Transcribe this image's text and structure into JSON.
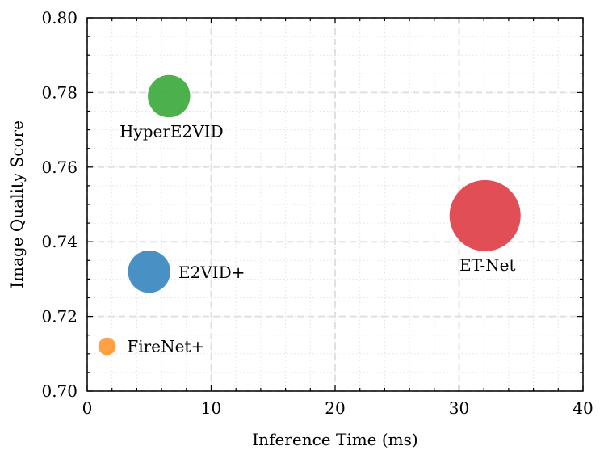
{
  "chart_data": {
    "type": "scatter",
    "title": "",
    "xlabel": "Inference Time (ms)",
    "ylabel": "Image Quality Score",
    "xlim": [
      0,
      40
    ],
    "ylim": [
      0.7,
      0.8
    ],
    "xticks": [
      0,
      10,
      20,
      30,
      40
    ],
    "xtick_labels": [
      "0",
      "10",
      "20",
      "30",
      "40"
    ],
    "yticks": [
      0.7,
      0.72,
      0.74,
      0.76,
      0.78,
      0.8
    ],
    "ytick_labels": [
      "0.70",
      "0.72",
      "0.74",
      "0.76",
      "0.78",
      "0.80"
    ],
    "grid": true,
    "bubble_size_encoding": true,
    "points": [
      {
        "label": "HyperE2VID",
        "x": 6.6,
        "y": 0.779,
        "size": 3,
        "color": "#3daa3d"
      },
      {
        "label": "E2VID+",
        "x": 5.0,
        "y": 0.732,
        "size": 3,
        "color": "#3a87c0"
      },
      {
        "label": "FireNet+",
        "x": 1.6,
        "y": 0.712,
        "size": 0.4,
        "color": "#ff9933"
      },
      {
        "label": "ET-Net",
        "x": 32.1,
        "y": 0.747,
        "size": 9,
        "color": "#de3f47"
      }
    ]
  }
}
